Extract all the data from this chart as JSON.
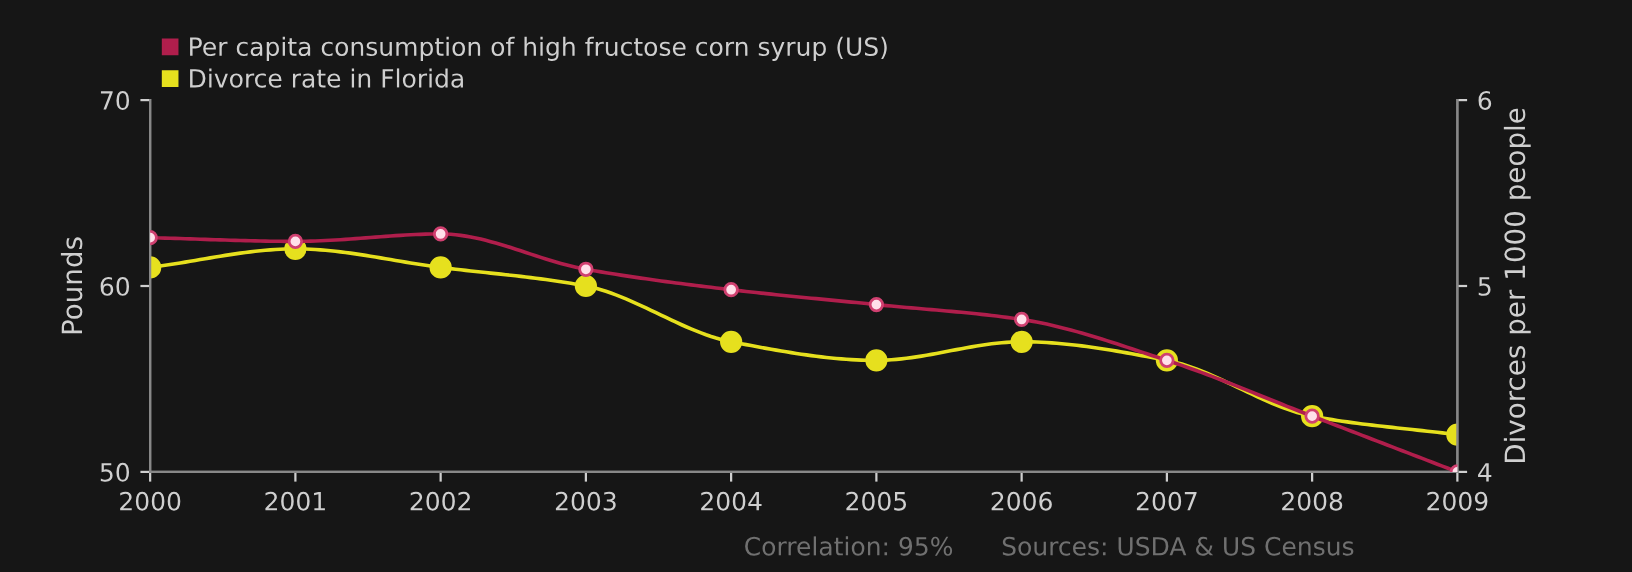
{
  "chart_data": {
    "type": "line",
    "x": [
      2000,
      2001,
      2002,
      2003,
      2004,
      2005,
      2006,
      2007,
      2008,
      2009
    ],
    "series": [
      {
        "name": "Per capita consumption of high fructose corn syrup (US)",
        "color": "#b01e4c",
        "values": [
          62.6,
          62.4,
          62.8,
          60.9,
          59.8,
          59.0,
          58.2,
          56.0,
          53.0,
          50.0
        ]
      },
      {
        "name": "Divorce rate in Florida",
        "color": "#e6e01e",
        "axis": "y2",
        "values": [
          5.1,
          5.2,
          5.1,
          5.0,
          4.7,
          4.6,
          4.7,
          4.6,
          4.3,
          4.2
        ]
      }
    ],
    "ylabel": "Pounds",
    "y2label": "Divorces per 1000 people",
    "xlim": [
      2000,
      2009
    ],
    "xticks": [
      2000,
      2001,
      2002,
      2003,
      2004,
      2005,
      2006,
      2007,
      2008,
      2009
    ],
    "ylim": [
      50,
      70
    ],
    "yticks": [
      50,
      60,
      70
    ],
    "y2lim": [
      4,
      6
    ],
    "y2ticks": [
      4,
      5,
      6
    ],
    "annotations": [
      "Correlation: 95%",
      "Sources: USDA & US Census"
    ],
    "legend": "top left",
    "marker": "circle",
    "line_style": "solid",
    "grid": false
  }
}
